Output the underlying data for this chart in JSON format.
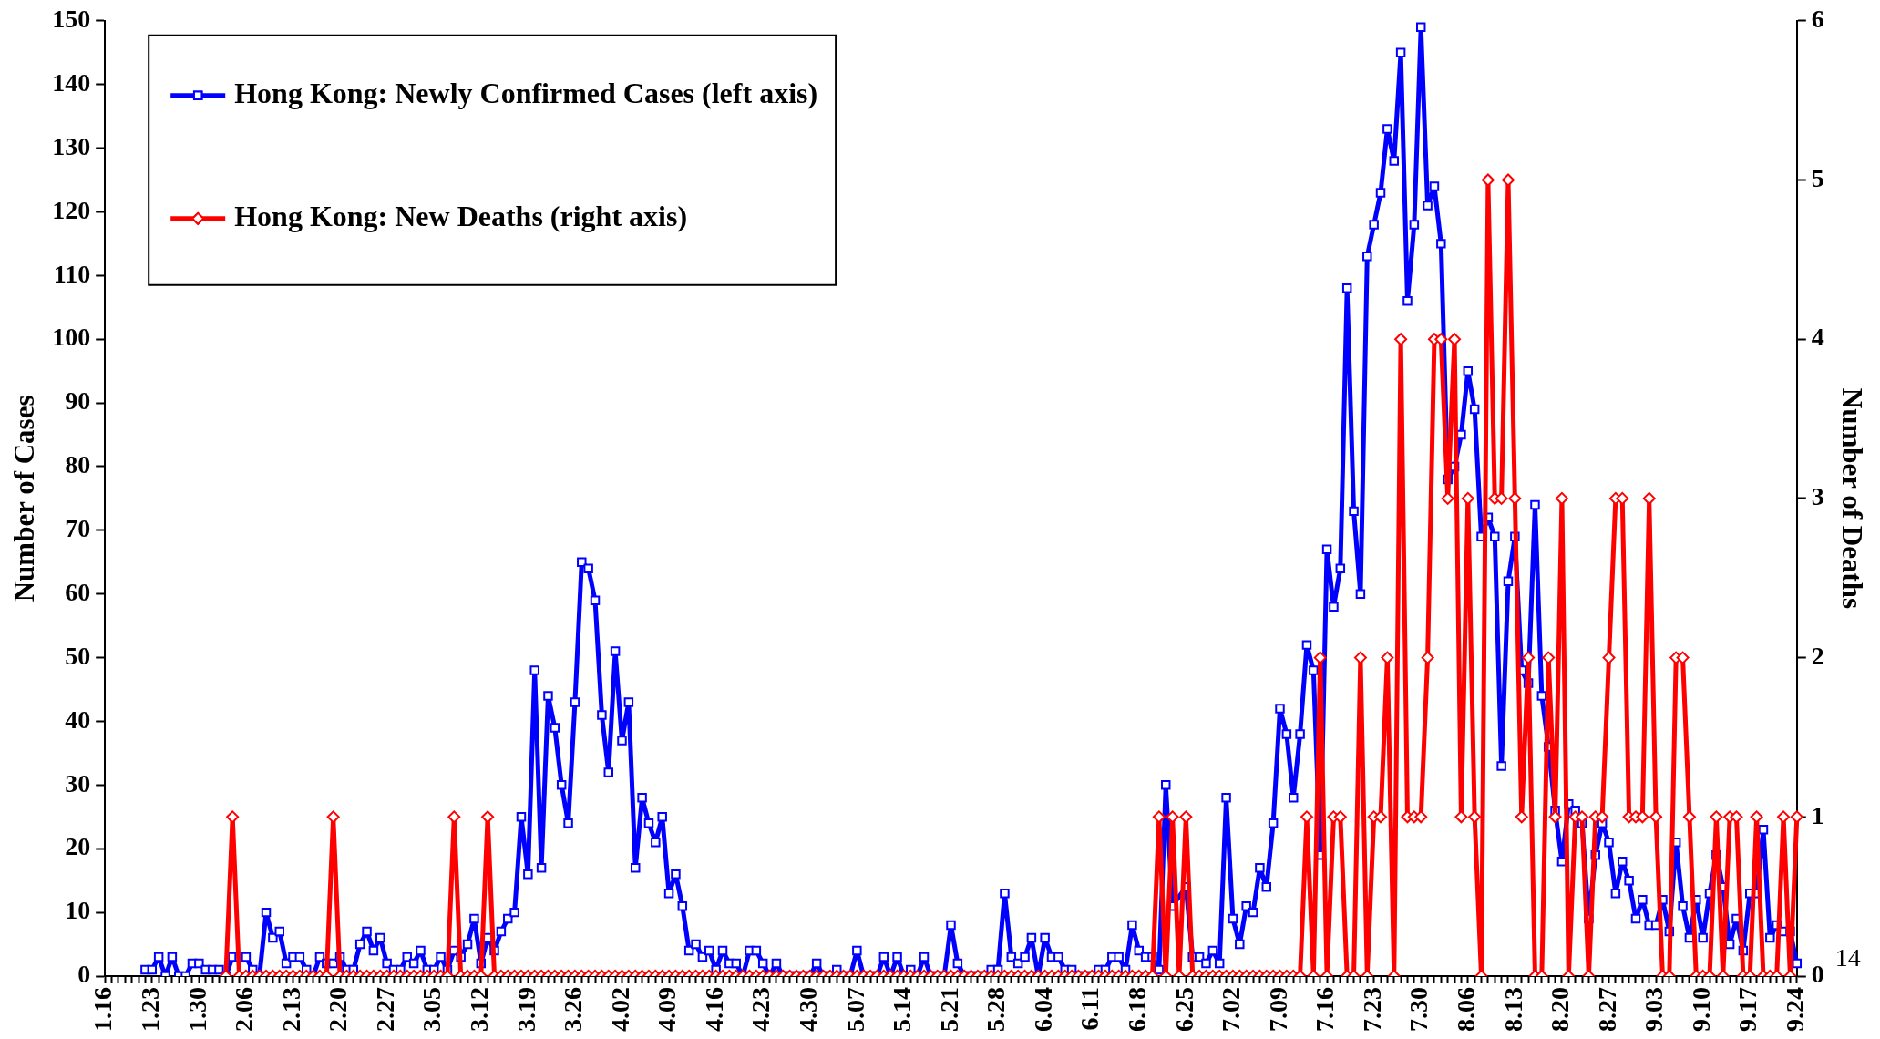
{
  "chart_data": {
    "type": "line",
    "ylabel": "Number of Cases",
    "y2label": "Number of Deaths",
    "legend": "top left",
    "annotations": [
      "14"
    ],
    "ylim": [
      0,
      150
    ],
    "yticks": [
      0,
      10,
      20,
      30,
      40,
      50,
      60,
      70,
      80,
      90,
      100,
      110,
      120,
      130,
      140,
      150
    ],
    "y2lim": [
      0,
      6
    ],
    "y2ticks": [
      0,
      1,
      2,
      3,
      4,
      5,
      6
    ],
    "categories": [
      "1.16",
      null,
      null,
      null,
      null,
      null,
      null,
      "1.23",
      null,
      null,
      null,
      null,
      null,
      null,
      "1.30",
      null,
      null,
      null,
      null,
      null,
      null,
      "2.06",
      null,
      null,
      null,
      null,
      null,
      null,
      "2.13",
      null,
      null,
      null,
      null,
      null,
      null,
      "2.20",
      null,
      null,
      null,
      null,
      null,
      null,
      "2.27",
      null,
      null,
      null,
      null,
      null,
      null,
      "3.05",
      null,
      null,
      null,
      null,
      null,
      null,
      "3.12",
      null,
      null,
      null,
      null,
      null,
      null,
      "3.19",
      null,
      null,
      null,
      null,
      null,
      null,
      "3.26",
      null,
      null,
      null,
      null,
      null,
      null,
      "4.02",
      null,
      null,
      null,
      null,
      null,
      null,
      "4.09",
      null,
      null,
      null,
      null,
      null,
      null,
      "4.16",
      null,
      null,
      null,
      null,
      null,
      null,
      "4.23",
      null,
      null,
      null,
      null,
      null,
      null,
      "4.30",
      null,
      null,
      null,
      null,
      null,
      null,
      "5.07",
      null,
      null,
      null,
      null,
      null,
      null,
      "5.14",
      null,
      null,
      null,
      null,
      null,
      null,
      "5.21",
      null,
      null,
      null,
      null,
      null,
      null,
      "5.28",
      null,
      null,
      null,
      null,
      null,
      null,
      "6.04",
      null,
      null,
      null,
      null,
      null,
      null,
      "6.11",
      null,
      null,
      null,
      null,
      null,
      null,
      "6.18",
      null,
      null,
      null,
      null,
      null,
      null,
      "6.25",
      null,
      null,
      null,
      null,
      null,
      null,
      "7.02",
      null,
      null,
      null,
      null,
      null,
      null,
      "7.09",
      null,
      null,
      null,
      null,
      null,
      null,
      "7.16",
      null,
      null,
      null,
      null,
      null,
      null,
      "7.23",
      null,
      null,
      null,
      null,
      null,
      null,
      "7.30",
      null,
      null,
      null,
      null,
      null,
      null,
      "8.06",
      null,
      null,
      null,
      null,
      null,
      null,
      "8.13",
      null,
      null,
      null,
      null,
      null,
      null,
      "8.20",
      null,
      null,
      null,
      null,
      null,
      null,
      "8.27",
      null,
      null,
      null,
      null,
      null,
      null,
      "9.03",
      null,
      null,
      null,
      null,
      null,
      null,
      "9.10",
      null,
      null,
      null,
      null,
      null,
      null,
      "9.17",
      null,
      null,
      null,
      null,
      null,
      null,
      "9.24"
    ],
    "series": [
      {
        "name": "Hong Kong: Newly Confirmed Cases (left axis)",
        "color": "#0000ff",
        "marker": "square",
        "axis": "y",
        "values": [
          null,
          null,
          null,
          null,
          null,
          null,
          1,
          1,
          3,
          0,
          3,
          0,
          0,
          2,
          2,
          1,
          1,
          1,
          0,
          3,
          3,
          3,
          1,
          0,
          10,
          6,
          7,
          2,
          3,
          3,
          1,
          0,
          3,
          2,
          2,
          3,
          1,
          1,
          5,
          7,
          4,
          6,
          2,
          1,
          1,
          3,
          2,
          4,
          1,
          1,
          3,
          1,
          4,
          3,
          5,
          9,
          2,
          6,
          4,
          7,
          9,
          10,
          25,
          16,
          48,
          17,
          44,
          39,
          30,
          24,
          43,
          65,
          64,
          59,
          41,
          32,
          51,
          37,
          43,
          17,
          28,
          24,
          21,
          25,
          13,
          16,
          11,
          4,
          5,
          3,
          4,
          1,
          4,
          2,
          2,
          0,
          4,
          4,
          2,
          0,
          2,
          0,
          0,
          0,
          0,
          0,
          2,
          0,
          0,
          1,
          0,
          0,
          4,
          0,
          0,
          0,
          3,
          0,
          3,
          0,
          1,
          0,
          3,
          0,
          0,
          0,
          8,
          2,
          0,
          0,
          0,
          0,
          1,
          1,
          13,
          3,
          2,
          3,
          6,
          0,
          6,
          3,
          3,
          1,
          1,
          0,
          0,
          0,
          1,
          1,
          3,
          3,
          1,
          8,
          4,
          3,
          3,
          1,
          30,
          11,
          null,
          14,
          3,
          3,
          2,
          4,
          2,
          28,
          9,
          5,
          11,
          10,
          17,
          14,
          24,
          42,
          38,
          28,
          38,
          52,
          48,
          19,
          67,
          58,
          64,
          108,
          73,
          60,
          113,
          118,
          123,
          133,
          128,
          145,
          106,
          118,
          149,
          121,
          124,
          115,
          78,
          80,
          85,
          95,
          89,
          69,
          72,
          69,
          33,
          62,
          69,
          48,
          46,
          74,
          44,
          36,
          26,
          18,
          27,
          26,
          24,
          9,
          19,
          24,
          21,
          13,
          18,
          15,
          9,
          12,
          8,
          8,
          12,
          7,
          21,
          11,
          6,
          12,
          6,
          13,
          19,
          14,
          5,
          9,
          4,
          13,
          13,
          23,
          6,
          8,
          7,
          7,
          2
        ]
      },
      {
        "name": "Hong Kong: New Deaths (right axis)",
        "color": "#ff0000",
        "marker": "diamond",
        "axis": "y2",
        "values": [
          null,
          null,
          null,
          null,
          null,
          null,
          null,
          null,
          null,
          null,
          null,
          null,
          null,
          null,
          null,
          null,
          null,
          null,
          0,
          1,
          0,
          0,
          0,
          0,
          0,
          0,
          0,
          0,
          0,
          0,
          0,
          0,
          0,
          0,
          1,
          0,
          0,
          0,
          0,
          0,
          0,
          0,
          0,
          0,
          0,
          0,
          0,
          0,
          0,
          0,
          0,
          0,
          1,
          0,
          0,
          0,
          0,
          1,
          0,
          0,
          0,
          0,
          0,
          0,
          0,
          0,
          0,
          0,
          0,
          0,
          0,
          0,
          0,
          0,
          0,
          0,
          0,
          0,
          0,
          0,
          0,
          0,
          0,
          0,
          0,
          0,
          0,
          0,
          0,
          0,
          0,
          0,
          0,
          0,
          0,
          0,
          0,
          0,
          0,
          0,
          0,
          0,
          0,
          0,
          0,
          0,
          0,
          0,
          0,
          0,
          0,
          0,
          0,
          0,
          0,
          0,
          0,
          0,
          0,
          0,
          0,
          0,
          0,
          0,
          0,
          0,
          0,
          0,
          0,
          0,
          0,
          0,
          0,
          0,
          0,
          0,
          0,
          0,
          0,
          0,
          0,
          0,
          0,
          0,
          0,
          0,
          0,
          0,
          0,
          0,
          0,
          0,
          0,
          0,
          0,
          0,
          0,
          1,
          0,
          1,
          0,
          1,
          0,
          0,
          0,
          0,
          0,
          0,
          0,
          0,
          0,
          0,
          0,
          0,
          0,
          0,
          0,
          0,
          0,
          1,
          0,
          2,
          0,
          1,
          1,
          0,
          0,
          2,
          0,
          1,
          1,
          2,
          0,
          4,
          1,
          1,
          1,
          2,
          4,
          4,
          3,
          4,
          1,
          3,
          1,
          0,
          5,
          3,
          3,
          5,
          3,
          1,
          2,
          0,
          0,
          2,
          1,
          3,
          0,
          1,
          1,
          0,
          1,
          1,
          2,
          3,
          3,
          1,
          1,
          1,
          3,
          1,
          0,
          0,
          2,
          2,
          1,
          0,
          0,
          0,
          1,
          0,
          1,
          1,
          0,
          0,
          1,
          0,
          0,
          0,
          1,
          0,
          1
        ]
      }
    ]
  }
}
